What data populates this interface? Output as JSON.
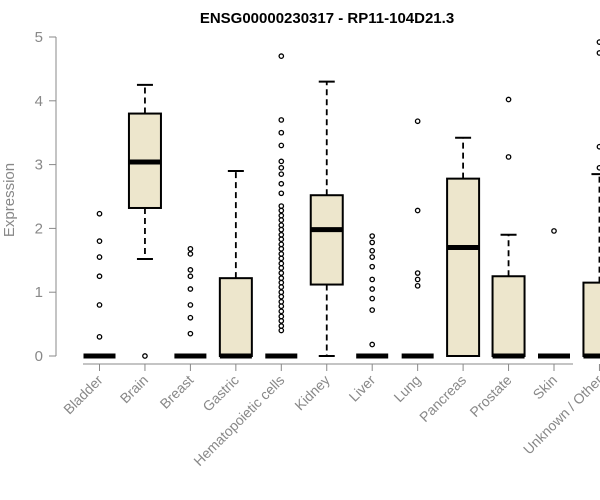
{
  "chart_data": {
    "type": "boxplot",
    "title": "ENSG00000230317 - RP11-104D21.3",
    "xlabel": "",
    "ylabel": "Expression",
    "ylim": [
      0,
      5
    ],
    "yticks": [
      0,
      1,
      2,
      3,
      4,
      5
    ],
    "colors": {
      "box_fill": "#ede6cc",
      "box_stroke": "#000000",
      "axis": "#888888"
    },
    "categories": [
      "Bladder",
      "Brain",
      "Breast",
      "Gastric",
      "Hematopoietic cells",
      "Kidney",
      "Liver",
      "Lung",
      "Pancreas",
      "Prostate",
      "Skin",
      "Unknown / Other"
    ],
    "boxes": [
      {
        "category": "Bladder",
        "min": 0,
        "q1": 0,
        "median": 0,
        "q3": 0,
        "max": 0,
        "outliers": [
          0.3,
          0.8,
          1.25,
          1.55,
          1.8,
          2.23
        ]
      },
      {
        "category": "Brain",
        "min": 1.52,
        "q1": 2.32,
        "median": 3.04,
        "q3": 3.8,
        "max": 4.25,
        "outliers": [
          0
        ]
      },
      {
        "category": "Breast",
        "min": 0,
        "q1": 0,
        "median": 0,
        "q3": 0,
        "max": 0,
        "outliers": [
          0.35,
          0.6,
          0.8,
          1.05,
          1.25,
          1.35,
          1.6,
          1.68
        ]
      },
      {
        "category": "Gastric",
        "min": 0,
        "q1": 0,
        "median": 0,
        "q3": 1.22,
        "max": 2.9,
        "outliers": []
      },
      {
        "category": "Hematopoietic cells",
        "min": 0,
        "q1": 0,
        "median": 0,
        "q3": 0,
        "max": 0,
        "outliers": [
          0.4,
          0.47,
          0.55,
          0.62,
          0.7,
          0.78,
          0.85,
          0.93,
          1.0,
          1.08,
          1.15,
          1.22,
          1.3,
          1.38,
          1.45,
          1.53,
          1.6,
          1.68,
          1.75,
          1.83,
          1.9,
          1.98,
          2.05,
          2.13,
          2.2,
          2.28,
          2.35,
          2.55,
          2.7,
          2.85,
          2.95,
          3.05,
          3.3,
          3.5,
          3.7,
          4.7
        ]
      },
      {
        "category": "Kidney",
        "min": 0,
        "q1": 1.12,
        "median": 1.98,
        "q3": 2.52,
        "max": 4.3,
        "outliers": []
      },
      {
        "category": "Liver",
        "min": 0,
        "q1": 0,
        "median": 0,
        "q3": 0,
        "max": 0,
        "outliers": [
          0.18,
          0.72,
          0.9,
          1.05,
          1.2,
          1.4,
          1.55,
          1.65,
          1.78,
          1.88
        ]
      },
      {
        "category": "Lung",
        "min": 0,
        "q1": 0,
        "median": 0,
        "q3": 0,
        "max": 0,
        "outliers": [
          1.1,
          1.2,
          1.3,
          2.28,
          3.68
        ]
      },
      {
        "category": "Pancreas",
        "min": 0,
        "q1": 0,
        "median": 1.7,
        "q3": 2.78,
        "max": 3.42,
        "outliers": []
      },
      {
        "category": "Prostate",
        "min": 0,
        "q1": 0,
        "median": 0,
        "q3": 1.25,
        "max": 1.9,
        "outliers": [
          3.12,
          4.02
        ]
      },
      {
        "category": "Skin",
        "min": 0,
        "q1": 0,
        "median": 0,
        "q3": 0,
        "max": 0,
        "outliers": [
          1.96
        ]
      },
      {
        "category": "Unknown / Other",
        "min": 0,
        "q1": 0,
        "median": 0,
        "q3": 1.15,
        "max": 2.85,
        "outliers": [
          2.95,
          3.28,
          4.75,
          4.92
        ]
      }
    ]
  }
}
